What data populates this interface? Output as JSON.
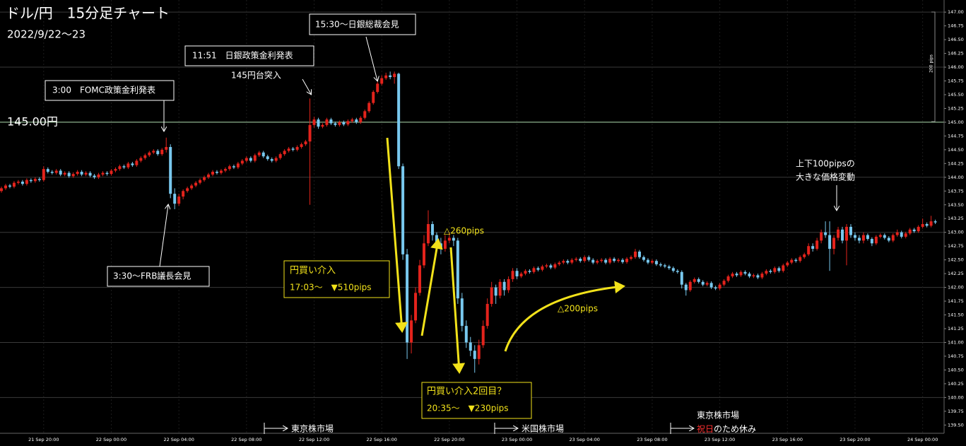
{
  "chart_data": {
    "type": "candlestick",
    "title": "ドル/円　15分足チャート",
    "subtitle": "2022/9/22～23",
    "scale_note": "200 pips",
    "up_color": "#e3231c",
    "down_color": "#78c8ee",
    "reference_line": {
      "value": 145,
      "label": "145.00円",
      "color": "#a6d4a6"
    },
    "grid": true,
    "ylim": [
      139.35,
      147.22
    ],
    "yticks": [
      {
        "value": 147,
        "label": "147.00"
      },
      146.75,
      {
        "value": 146.5,
        "label": "146.50"
      },
      146.25,
      {
        "value": 146,
        "label": "146.00"
      },
      145.75,
      {
        "value": 145.5,
        "label": "145.50"
      },
      145.25,
      {
        "value": 145,
        "label": "145.00"
      },
      144.75,
      {
        "value": 144.5,
        "label": "144.50"
      },
      144.25,
      {
        "value": 144,
        "label": "144.00"
      },
      143.75,
      {
        "value": 143.5,
        "label": "143.50"
      },
      143.25,
      {
        "value": 143,
        "label": "143.00"
      },
      142.75,
      {
        "value": 142.5,
        "label": "142.50"
      },
      142.25,
      {
        "value": 142,
        "label": "142.00"
      },
      141.75,
      {
        "value": 141.5,
        "label": "141.50"
      },
      141.25,
      {
        "value": 141,
        "label": "141.00"
      },
      140.75,
      {
        "value": 140.5,
        "label": "140.50"
      },
      140.25,
      {
        "value": 140,
        "label": "140.00"
      },
      139.75,
      {
        "value": 139.5,
        "label": "139.50"
      }
    ],
    "annotations": [
      "3:00　FOMC政策金利発表",
      "11:51　日銀政策金利発表",
      "145円台突入",
      "15:30～日銀総裁会見",
      "3:30～FRB議長会見",
      "円買い介入",
      "17:03～　▼510pips",
      "△260pips",
      "円買い介入2回目？",
      "20:35～　▼230pips",
      "△200pips",
      "上下100pipsの",
      "大きな価格変動",
      "東京株市場",
      "米国株市場",
      "東京株市場",
      "祝日",
      "のため休み"
    ],
    "categories": [
      null,
      null,
      null,
      null,
      null,
      null,
      null,
      null,
      null,
      null,
      "21 Sep 20:00",
      null,
      null,
      null,
      null,
      null,
      null,
      null,
      null,
      null,
      null,
      null,
      null,
      null,
      null,
      null,
      "22 Sep 00:00",
      null,
      null,
      null,
      null,
      null,
      null,
      null,
      null,
      null,
      null,
      null,
      null,
      null,
      null,
      null,
      "22 Sep 04:00",
      null,
      null,
      null,
      null,
      null,
      null,
      null,
      null,
      null,
      null,
      null,
      null,
      null,
      null,
      null,
      "22 Sep 08:00",
      null,
      null,
      null,
      null,
      null,
      null,
      null,
      null,
      null,
      null,
      null,
      null,
      null,
      null,
      null,
      "22 Sep 12:00",
      null,
      null,
      null,
      null,
      null,
      null,
      null,
      null,
      null,
      null,
      null,
      null,
      null,
      null,
      null,
      "22 Sep 16:00",
      null,
      null,
      null,
      null,
      null,
      null,
      null,
      null,
      null,
      null,
      null,
      null,
      null,
      null,
      null,
      "22 Sep 20:00",
      null,
      null,
      null,
      null,
      null,
      null,
      null,
      null,
      null,
      null,
      null,
      null,
      null,
      null,
      null,
      "23 Sep 00:00",
      null,
      null,
      null,
      null,
      null,
      null,
      null,
      null,
      null,
      null,
      null,
      null,
      null,
      null,
      null,
      "23 Sep 04:00",
      null,
      null,
      null,
      null,
      null,
      null,
      null,
      null,
      null,
      null,
      null,
      null,
      null,
      null,
      null,
      "23 Sep 08:00",
      null,
      null,
      null,
      null,
      null,
      null,
      null,
      null,
      null,
      null,
      null,
      null,
      null,
      null,
      null,
      "23 Sep 12:00",
      null,
      null,
      null,
      null,
      null,
      null,
      null,
      null,
      null,
      null,
      null,
      null,
      null,
      null,
      null,
      "23 Sep 16:00",
      null,
      null,
      null,
      null,
      null,
      null,
      null,
      null,
      null,
      null,
      null,
      null,
      null,
      null,
      null,
      "23 Sep 20:00",
      null,
      null,
      null,
      null,
      null,
      null,
      null,
      null,
      null,
      null,
      null,
      null,
      null,
      null,
      null,
      "24 Sep 00:00",
      null,
      null,
      null
    ],
    "open": [
      143.75,
      143.8,
      143.85,
      143.83,
      143.9,
      143.92,
      143.88,
      143.95,
      143.93,
      143.97,
      143.95,
      144.15,
      144.1,
      144.08,
      144.12,
      144.05,
      144.08,
      144.02,
      144.06,
      144.1,
      144.05,
      144.08,
      144.03,
      144.0,
      144.05,
      144.08,
      144.06,
      144.12,
      144.15,
      144.2,
      144.18,
      144.25,
      144.22,
      144.3,
      144.35,
      144.4,
      144.45,
      144.48,
      144.42,
      144.5,
      144.55,
      143.7,
      143.52,
      143.65,
      143.75,
      143.8,
      143.85,
      143.9,
      143.95,
      144.0,
      144.05,
      144.1,
      144.08,
      144.12,
      144.15,
      144.2,
      144.18,
      144.25,
      144.3,
      144.35,
      144.3,
      144.4,
      144.45,
      144.38,
      144.33,
      144.3,
      144.35,
      144.42,
      144.48,
      144.52,
      144.5,
      144.55,
      144.6,
      144.65,
      144.95,
      145.05,
      144.92,
      144.95,
      145.05,
      144.98,
      144.95,
      145.0,
      144.96,
      145.02,
      145.05,
      145.0,
      145.08,
      145.2,
      145.35,
      145.55,
      145.7,
      145.8,
      145.85,
      145.82,
      145.88,
      144.2,
      142.6,
      141.0,
      141.4,
      141.9,
      142.4,
      142.8,
      143.15,
      142.95,
      142.8,
      142.7,
      142.85,
      142.9,
      142.85,
      141.8,
      141.3,
      141.0,
      140.85,
      140.7,
      140.95,
      141.3,
      141.7,
      142.0,
      141.85,
      142.1,
      141.95,
      142.15,
      142.3,
      142.2,
      142.25,
      142.3,
      142.28,
      142.35,
      142.32,
      142.38,
      142.4,
      142.36,
      142.42,
      142.45,
      142.48,
      142.45,
      142.5,
      142.52,
      142.48,
      142.55,
      142.5,
      142.45,
      142.48,
      142.5,
      142.45,
      142.52,
      142.48,
      142.5,
      142.46,
      142.52,
      142.55,
      142.65,
      142.55,
      142.5,
      142.45,
      142.48,
      142.42,
      142.4,
      142.38,
      142.35,
      142.3,
      142.28,
      142.05,
      141.95,
      142.1,
      142.15,
      142.1,
      142.05,
      142.08,
      142.0,
      141.98,
      142.05,
      142.12,
      142.2,
      142.25,
      142.22,
      142.28,
      142.25,
      142.2,
      142.22,
      142.18,
      142.25,
      142.3,
      142.28,
      142.35,
      142.3,
      142.4,
      142.45,
      142.5,
      142.48,
      142.55,
      142.6,
      142.75,
      142.7,
      142.85,
      143.0,
      142.95,
      142.7,
      142.9,
      143.05,
      142.85,
      143.1,
      142.95,
      142.9,
      142.85,
      142.95,
      142.88,
      142.8,
      142.92,
      142.95,
      142.9,
      142.85,
      142.95,
      143.0,
      142.92,
      142.98,
      143.05,
      143.02,
      143.1,
      143.15,
      143.12,
      143.2
    ],
    "high": [
      143.83,
      143.88,
      143.88,
      143.93,
      143.95,
      143.95,
      143.98,
      143.98,
      144.0,
      144.0,
      144.2,
      144.18,
      144.13,
      144.15,
      144.15,
      144.11,
      144.11,
      144.09,
      144.13,
      144.13,
      144.11,
      144.11,
      144.06,
      144.08,
      144.11,
      144.11,
      144.15,
      144.18,
      144.23,
      144.23,
      144.28,
      144.28,
      144.33,
      144.38,
      144.43,
      144.48,
      144.51,
      144.51,
      144.53,
      144.72,
      144.6,
      143.8,
      143.7,
      143.78,
      143.83,
      143.88,
      143.93,
      143.98,
      144.03,
      144.08,
      144.13,
      144.13,
      144.15,
      144.18,
      144.23,
      144.23,
      144.28,
      144.33,
      144.38,
      144.38,
      144.43,
      144.48,
      144.48,
      144.41,
      144.36,
      144.38,
      144.45,
      144.51,
      144.55,
      144.55,
      144.58,
      144.63,
      144.68,
      145.43,
      145.1,
      145.08,
      144.98,
      145.08,
      145.08,
      145.01,
      145.03,
      145.03,
      145.05,
      145.08,
      145.08,
      145.11,
      145.23,
      145.38,
      145.58,
      145.73,
      145.85,
      145.9,
      145.92,
      145.92,
      145.9,
      144.25,
      142.7,
      141.5,
      142.0,
      142.5,
      142.95,
      143.4,
      143.2,
      143.0,
      142.9,
      142.95,
      143.0,
      142.95,
      142.9,
      141.9,
      141.4,
      141.1,
      140.95,
      141.05,
      141.4,
      141.8,
      142.1,
      142.05,
      142.15,
      142.15,
      142.2,
      142.35,
      142.35,
      142.28,
      142.33,
      142.33,
      142.38,
      142.38,
      142.41,
      142.43,
      142.43,
      142.45,
      142.48,
      142.51,
      142.51,
      142.53,
      142.55,
      142.55,
      142.58,
      142.58,
      142.53,
      142.51,
      142.53,
      142.53,
      142.55,
      142.55,
      142.53,
      142.53,
      142.55,
      142.58,
      142.7,
      142.68,
      142.58,
      142.53,
      142.51,
      142.51,
      142.45,
      142.43,
      142.41,
      142.38,
      142.33,
      142.31,
      142.08,
      142.13,
      142.18,
      142.18,
      142.13,
      142.11,
      142.11,
      142.03,
      142.08,
      142.15,
      142.23,
      142.28,
      142.28,
      142.31,
      142.31,
      142.28,
      142.25,
      142.25,
      142.28,
      142.33,
      142.33,
      142.38,
      142.38,
      142.43,
      142.48,
      142.53,
      142.53,
      142.58,
      142.63,
      142.8,
      142.8,
      142.9,
      143.05,
      143.2,
      143.2,
      142.95,
      143.1,
      143.1,
      143.15,
      143.15,
      143.0,
      142.95,
      143.0,
      142.98,
      142.91,
      142.95,
      142.98,
      142.98,
      142.93,
      142.98,
      143.05,
      143.03,
      143.01,
      143.08,
      143.08,
      143.13,
      143.25,
      143.18,
      143.3,
      143.23
    ],
    "low": [
      143.72,
      143.77,
      143.8,
      143.8,
      143.87,
      143.85,
      143.85,
      143.9,
      143.9,
      143.92,
      143.92,
      144.07,
      144.05,
      144.05,
      144.02,
      144.02,
      143.99,
      143.99,
      144.03,
      144.02,
      144.02,
      144.0,
      143.97,
      143.97,
      144.02,
      144.03,
      144.03,
      144.09,
      144.12,
      144.15,
      144.15,
      144.19,
      144.19,
      144.27,
      144.32,
      144.37,
      144.42,
      144.39,
      144.39,
      144.45,
      143.62,
      143.42,
      143.48,
      143.6,
      143.72,
      143.77,
      143.82,
      143.87,
      143.92,
      143.97,
      144.02,
      144.05,
      144.05,
      144.09,
      144.12,
      144.15,
      144.15,
      144.22,
      144.27,
      144.27,
      144.27,
      144.37,
      144.35,
      144.3,
      144.27,
      144.27,
      144.32,
      144.39,
      144.45,
      144.47,
      144.47,
      144.52,
      144.57,
      143.5,
      144.9,
      144.88,
      144.89,
      144.92,
      144.95,
      144.92,
      144.92,
      144.93,
      144.93,
      144.99,
      144.97,
      144.97,
      145.05,
      145.17,
      145.32,
      145.52,
      145.67,
      145.77,
      145.78,
      145.7,
      144.15,
      142.5,
      140.7,
      140.8,
      141.35,
      141.85,
      142.35,
      142.75,
      142.85,
      142.7,
      142.6,
      142.65,
      142.8,
      142.75,
      141.7,
      141.2,
      140.9,
      140.75,
      140.45,
      140.6,
      140.9,
      141.25,
      141.65,
      141.7,
      141.8,
      141.85,
      141.9,
      142.1,
      142.15,
      142.17,
      142.22,
      142.25,
      142.25,
      142.29,
      142.29,
      142.35,
      142.33,
      142.33,
      142.39,
      142.42,
      142.42,
      142.42,
      142.47,
      142.45,
      142.45,
      142.47,
      142.42,
      142.42,
      142.45,
      142.42,
      142.42,
      142.45,
      142.45,
      142.43,
      142.43,
      142.49,
      142.52,
      142.52,
      142.47,
      142.42,
      142.42,
      142.39,
      142.37,
      142.35,
      142.32,
      142.27,
      142.25,
      141.98,
      141.85,
      141.92,
      142.07,
      142.07,
      142.02,
      142.02,
      141.97,
      141.95,
      141.95,
      142.02,
      142.09,
      142.17,
      142.19,
      142.19,
      142.22,
      142.17,
      142.17,
      142.15,
      142.15,
      142.22,
      142.25,
      142.25,
      142.27,
      142.27,
      142.37,
      142.42,
      142.45,
      142.45,
      142.52,
      142.57,
      142.65,
      142.67,
      142.8,
      142.9,
      142.3,
      142.6,
      142.85,
      142.8,
      142.4,
      142.9,
      142.85,
      142.8,
      142.8,
      142.85,
      142.75,
      142.77,
      142.89,
      142.87,
      142.82,
      142.82,
      142.92,
      142.89,
      142.89,
      142.95,
      142.99,
      142.99,
      143.07,
      143.09,
      143.09,
      143.15
    ],
    "close": [
      143.8,
      143.85,
      143.83,
      143.9,
      143.92,
      143.88,
      143.95,
      143.93,
      143.97,
      143.95,
      144.15,
      144.1,
      144.08,
      144.12,
      144.05,
      144.08,
      144.02,
      144.06,
      144.1,
      144.05,
      144.08,
      144.03,
      144.0,
      144.05,
      144.08,
      144.06,
      144.12,
      144.15,
      144.2,
      144.18,
      144.25,
      144.22,
      144.3,
      144.35,
      144.4,
      144.45,
      144.48,
      144.42,
      144.5,
      144.55,
      143.7,
      143.52,
      143.65,
      143.75,
      143.8,
      143.85,
      143.9,
      143.95,
      144.0,
      144.05,
      144.1,
      144.08,
      144.12,
      144.15,
      144.2,
      144.18,
      144.25,
      144.3,
      144.35,
      144.3,
      144.4,
      144.45,
      144.38,
      144.33,
      144.3,
      144.35,
      144.42,
      144.48,
      144.52,
      144.5,
      144.55,
      144.6,
      144.65,
      144.95,
      145.05,
      144.92,
      144.95,
      145.05,
      144.98,
      144.95,
      145.0,
      144.96,
      145.02,
      145.05,
      145.0,
      145.08,
      145.2,
      145.35,
      145.55,
      145.7,
      145.8,
      145.85,
      145.82,
      145.88,
      144.2,
      142.6,
      141.0,
      141.4,
      141.9,
      142.4,
      142.8,
      143.15,
      142.95,
      142.8,
      142.7,
      142.85,
      142.9,
      142.85,
      141.8,
      141.3,
      141.0,
      140.85,
      140.7,
      140.95,
      141.3,
      141.7,
      142.0,
      141.85,
      142.1,
      141.95,
      142.15,
      142.3,
      142.2,
      142.25,
      142.3,
      142.28,
      142.35,
      142.32,
      142.38,
      142.4,
      142.36,
      142.42,
      142.45,
      142.48,
      142.45,
      142.5,
      142.52,
      142.48,
      142.55,
      142.5,
      142.45,
      142.48,
      142.5,
      142.45,
      142.52,
      142.48,
      142.5,
      142.46,
      142.52,
      142.55,
      142.65,
      142.55,
      142.5,
      142.45,
      142.48,
      142.42,
      142.4,
      142.38,
      142.35,
      142.3,
      142.28,
      142.05,
      141.95,
      142.1,
      142.15,
      142.1,
      142.05,
      142.08,
      142.0,
      141.98,
      142.05,
      142.12,
      142.2,
      142.25,
      142.22,
      142.28,
      142.25,
      142.2,
      142.22,
      142.18,
      142.25,
      142.3,
      142.28,
      142.35,
      142.3,
      142.4,
      142.45,
      142.5,
      142.48,
      142.55,
      142.6,
      142.75,
      142.7,
      142.85,
      143.0,
      142.95,
      142.7,
      142.9,
      143.05,
      142.85,
      143.1,
      142.95,
      142.9,
      142.85,
      142.95,
      142.88,
      142.8,
      142.92,
      142.95,
      142.9,
      142.85,
      142.95,
      143.0,
      142.92,
      142.98,
      143.05,
      143.02,
      143.1,
      143.15,
      143.12,
      143.2,
      143.18
    ]
  }
}
